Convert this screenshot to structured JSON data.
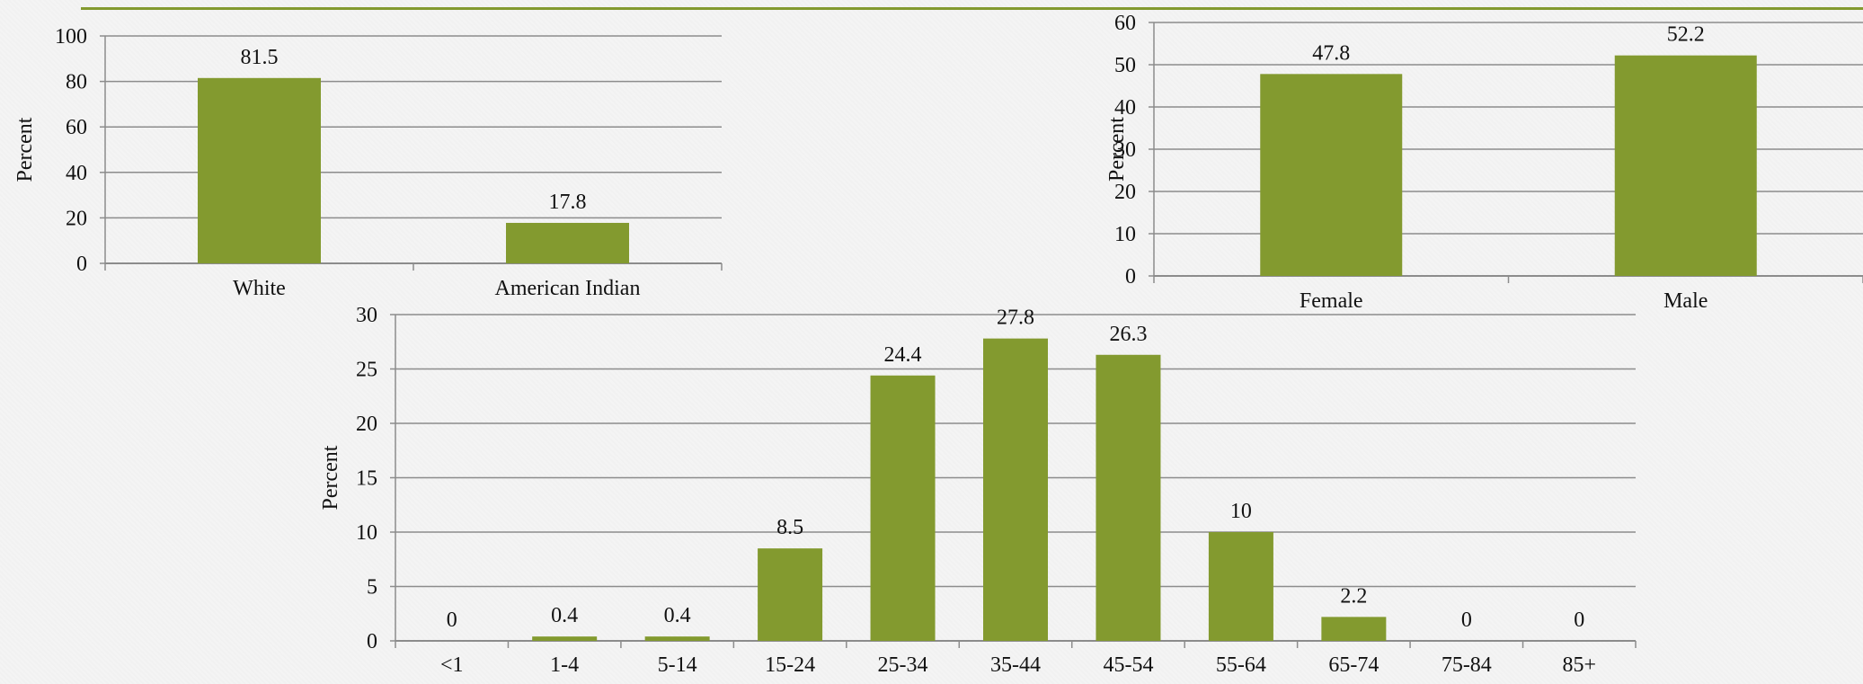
{
  "theme": {
    "bar_color": "#839a2f",
    "accent_line": "#839a2f",
    "grid_color": "#8c8c8c",
    "text_color": "#111111"
  },
  "chart_data": [
    {
      "type": "bar",
      "categories": [
        "White",
        "American Indian"
      ],
      "values": [
        81.5,
        17.8
      ],
      "data_labels": [
        "81.5",
        "17.8"
      ],
      "ylabel": "Percent",
      "ylim": [
        0,
        100
      ],
      "yticks": [
        "0",
        "20",
        "40",
        "60",
        "80",
        "100"
      ],
      "grid": true,
      "legend": "none"
    },
    {
      "type": "bar",
      "categories": [
        "Female",
        "Male"
      ],
      "values": [
        47.8,
        52.2
      ],
      "data_labels": [
        "47.8",
        "52.2"
      ],
      "ylabel": "Percent",
      "ylim": [
        0,
        60
      ],
      "yticks": [
        "0",
        "10",
        "20",
        "30",
        "40",
        "50",
        "60"
      ],
      "grid": true,
      "legend": "none"
    },
    {
      "type": "bar",
      "categories": [
        "<1",
        "1-4",
        "5-14",
        "15-24",
        "25-34",
        "35-44",
        "45-54",
        "55-64",
        "65-74",
        "75-84",
        "85+"
      ],
      "values": [
        0,
        0.4,
        0.4,
        8.5,
        24.4,
        27.8,
        26.3,
        10,
        2.2,
        0,
        0
      ],
      "data_labels": [
        "0",
        "0.4",
        "0.4",
        "8.5",
        "24.4",
        "27.8",
        "26.3",
        "10",
        "2.2",
        "0",
        "0"
      ],
      "ylabel": "Percent",
      "ylim": [
        0,
        30
      ],
      "yticks": [
        "0",
        "5",
        "10",
        "15",
        "20",
        "25",
        "30"
      ],
      "grid": true,
      "legend": "none"
    }
  ]
}
